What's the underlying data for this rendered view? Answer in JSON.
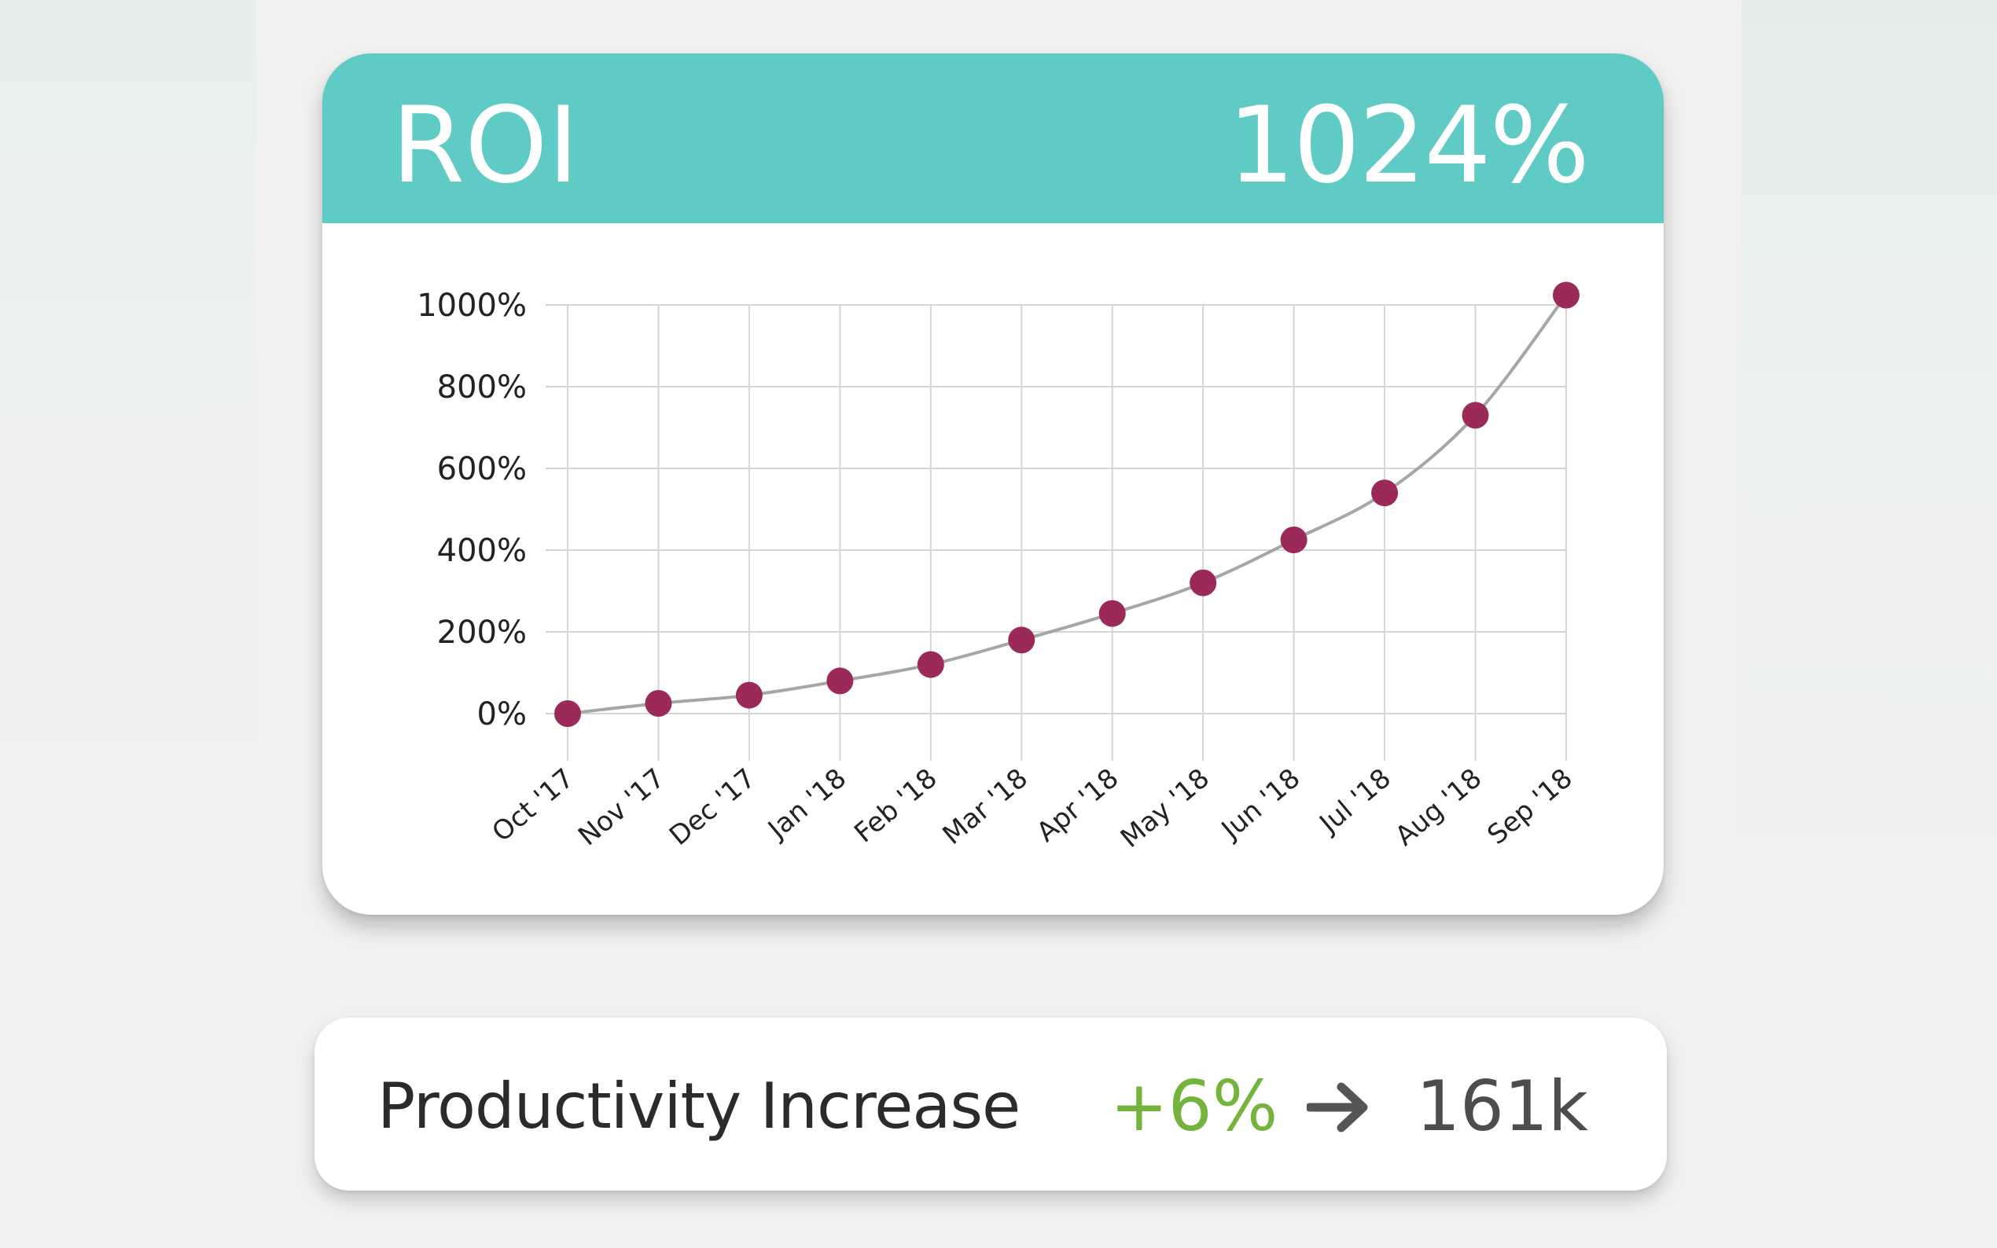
{
  "roi_card": {
    "title": "ROI",
    "value": "1024%"
  },
  "chart_data": {
    "type": "line",
    "title": "",
    "xlabel": "",
    "ylabel": "",
    "categories": [
      "Oct '17",
      "Nov '17",
      "Dec '17",
      "Jan '18",
      "Feb '18",
      "Mar '18",
      "Apr '18",
      "May '18",
      "Jun '18",
      "Jul '18",
      "Aug '18",
      "Sep '18"
    ],
    "series": [
      {
        "values": [
          0,
          25,
          45,
          80,
          120,
          180,
          245,
          320,
          425,
          540,
          730,
          1024
        ]
      }
    ],
    "yticks": [
      "0%",
      "200%",
      "400%",
      "600%",
      "800%",
      "1000%"
    ],
    "ylim": [
      0,
      1000
    ],
    "grid": true,
    "colors": {
      "line": "#a6a6a6",
      "marker": "#9b2a5a",
      "grid": "#d6d6d6"
    }
  },
  "productivity": {
    "label": "Productivity Increase",
    "change": "+6%",
    "arrow_icon": "arrow-right-icon",
    "count": "161k"
  },
  "colors": {
    "header": "#5fcbc4",
    "positive": "#74b33c"
  }
}
